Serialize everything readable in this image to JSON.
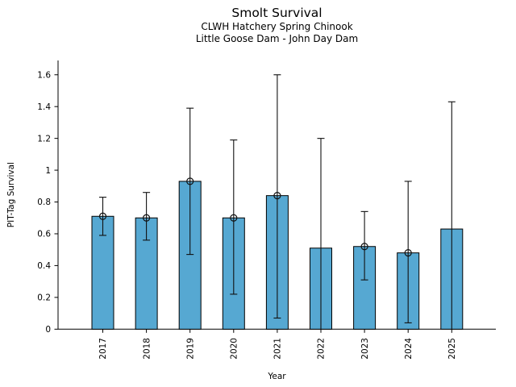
{
  "header": {
    "title": "Smolt Survival",
    "subtitle1": "CLWH Hatchery Spring Chinook",
    "subtitle2": "Little Goose Dam - John Day Dam"
  },
  "chart_data": {
    "type": "bar",
    "title": "Smolt Survival",
    "subtitle": [
      "CLWH Hatchery Spring Chinook",
      "Little Goose Dam - John Day Dam"
    ],
    "xlabel": "Year",
    "ylabel": "PIT-Tag Survival",
    "categories": [
      "2017",
      "2018",
      "2019",
      "2020",
      "2021",
      "2022",
      "2023",
      "2024",
      "2025"
    ],
    "values": [
      0.71,
      0.7,
      0.93,
      0.7,
      0.84,
      0.51,
      0.52,
      0.48,
      0.63
    ],
    "error_low": [
      0.59,
      0.56,
      0.47,
      0.22,
      0.07,
      0.0,
      0.31,
      0.04,
      0.0
    ],
    "error_high": [
      0.83,
      0.86,
      1.39,
      1.19,
      1.6,
      1.2,
      0.74,
      0.93,
      1.43
    ],
    "point_markers": [
      true,
      true,
      true,
      true,
      true,
      false,
      true,
      true,
      false
    ],
    "yticks": [
      0,
      0.2,
      0.4,
      0.6,
      0.8,
      1,
      1.2,
      1.4,
      1.6
    ],
    "ytick_labels": [
      "0",
      "0.2",
      "0.4",
      "0.6",
      "0.8",
      "1",
      "1.2",
      "1.4",
      "1.6"
    ],
    "ylim": [
      0,
      1.69
    ],
    "grid": false,
    "legend_position": "none",
    "bar_color": "#56a8d2",
    "bar_edge_color": "#000000",
    "error_color": "#111111",
    "axis_color": "#000000"
  }
}
